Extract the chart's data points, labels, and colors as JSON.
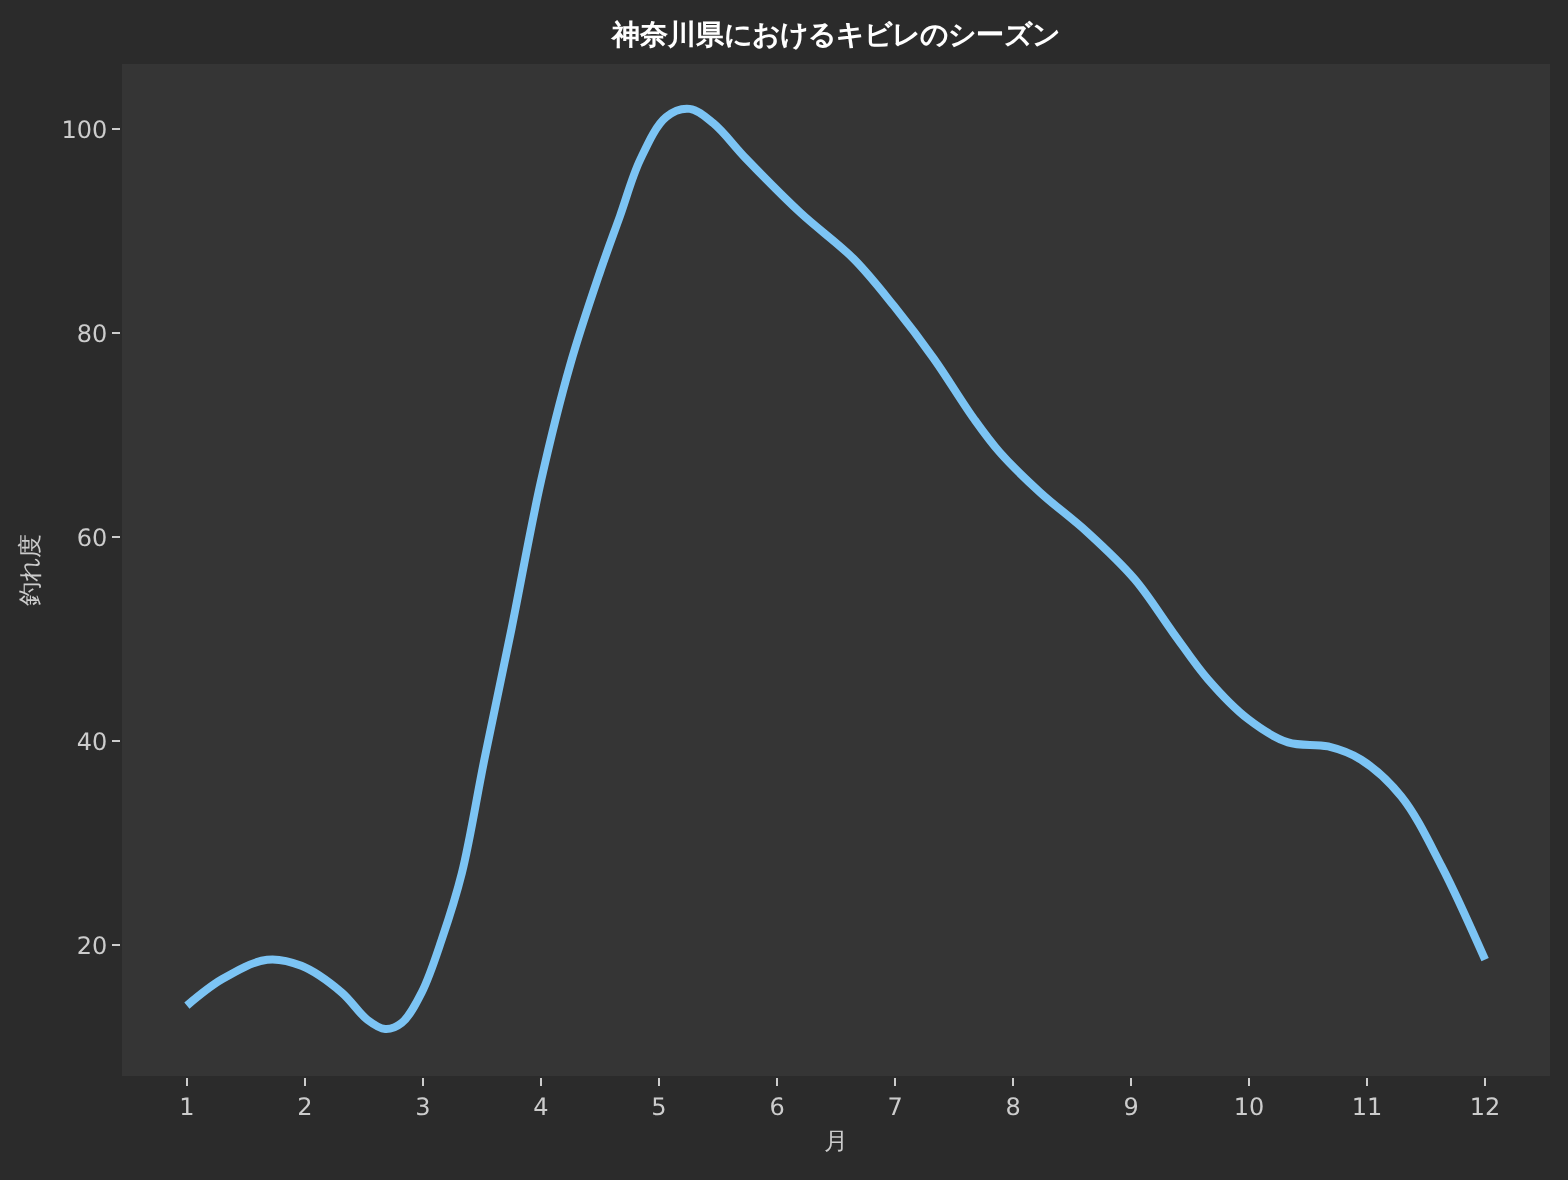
{
  "chart_data": {
    "type": "line",
    "title": "神奈川県におけるキビレのシーズン",
    "xlabel": "月",
    "ylabel": "釣れ度",
    "series": [
      {
        "color": "#7cc4f4",
        "x": [
          1.0,
          1.3,
          1.68,
          1.97,
          2.31,
          2.53,
          2.68,
          2.82,
          2.99,
          3.16,
          3.33,
          3.52,
          3.75,
          4.0,
          4.25,
          4.5,
          4.67,
          4.84,
          5.06,
          5.26,
          5.46,
          5.74,
          6.2,
          6.65,
          6.99,
          7.33,
          7.67,
          7.89,
          8.23,
          8.63,
          9.03,
          9.36,
          9.65,
          9.99,
          10.33,
          10.67,
          10.95,
          11.29,
          11.63,
          12.0
        ],
        "values": [
          14.1,
          16.7,
          18.6,
          18.0,
          15.4,
          12.7,
          11.8,
          12.4,
          15.4,
          20.6,
          27.1,
          38.2,
          51,
          65.5,
          77,
          86,
          91.5,
          97,
          101.2,
          102,
          100.6,
          97.1,
          91.8,
          87.3,
          82.7,
          77.5,
          71.6,
          68.3,
          64.4,
          60.5,
          55.9,
          50.6,
          46.1,
          42.2,
          39.9,
          39.5,
          38.2,
          34.6,
          27.8,
          18.6
        ]
      }
    ],
    "xlim": [
      0.45,
      12.55
    ],
    "xticks": [
      1,
      2,
      3,
      4,
      5,
      6,
      7,
      8,
      9,
      10,
      11,
      12
    ],
    "ylim": [
      7.2,
      106.4
    ],
    "yticks": [
      20,
      40,
      60,
      80,
      100
    ],
    "line_style": "solid",
    "marker": "none"
  }
}
